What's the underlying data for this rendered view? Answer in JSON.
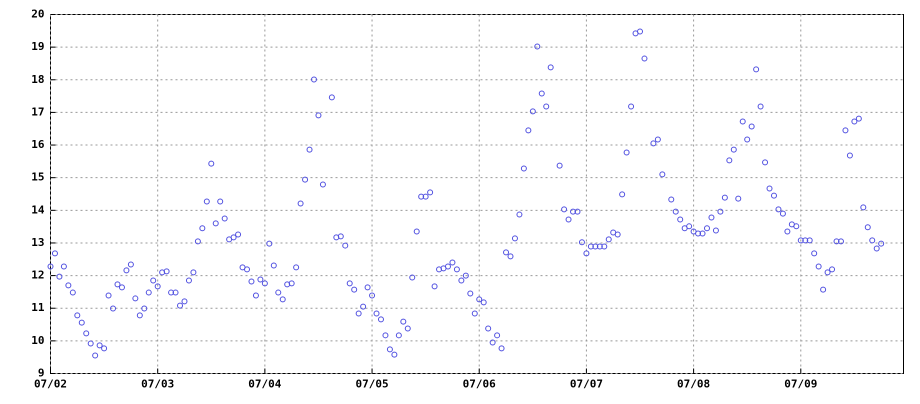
{
  "chart_data": {
    "type": "scatter",
    "color": "#5050e0",
    "grid": true,
    "xlim": [
      0,
      191
    ],
    "xticks": [
      {
        "value": 0,
        "label": "07/02"
      },
      {
        "value": 24,
        "label": "07/03"
      },
      {
        "value": 48,
        "label": "07/04"
      },
      {
        "value": 72,
        "label": "07/05"
      },
      {
        "value": 96,
        "label": "07/06"
      },
      {
        "value": 120,
        "label": "07/07"
      },
      {
        "value": 144,
        "label": "07/08"
      },
      {
        "value": 168,
        "label": "07/09"
      }
    ],
    "ylim": [
      9,
      20
    ],
    "yticks": [
      9,
      10,
      11,
      12,
      13,
      14,
      15,
      16,
      17,
      18,
      19,
      20
    ],
    "x": [
      0,
      1,
      2,
      3,
      4,
      5,
      6,
      7,
      8,
      9,
      10,
      11,
      12,
      13,
      14,
      15,
      16,
      17,
      18,
      19,
      20,
      21,
      22,
      23,
      24,
      25,
      26,
      27,
      28,
      29,
      30,
      31,
      32,
      33,
      34,
      35,
      36,
      37,
      38,
      39,
      40,
      41,
      42,
      43,
      44,
      45,
      46,
      47,
      48,
      49,
      50,
      51,
      52,
      53,
      54,
      55,
      56,
      57,
      58,
      59,
      60,
      61,
      63,
      64,
      65,
      66,
      67,
      68,
      69,
      70,
      71,
      72,
      73,
      74,
      75,
      76,
      77,
      78,
      79,
      80,
      81,
      82,
      83,
      84,
      85,
      86,
      87,
      88,
      89,
      90,
      91,
      92,
      93,
      94,
      95,
      96,
      97,
      98,
      99,
      100,
      101,
      102,
      103,
      104,
      105,
      106,
      107,
      108,
      109,
      110,
      111,
      112,
      114,
      115,
      116,
      117,
      118,
      119,
      120,
      121,
      122,
      123,
      124,
      125,
      126,
      127,
      128,
      129,
      130,
      131,
      132,
      133,
      135,
      136,
      137,
      139,
      140,
      141,
      142,
      143,
      144,
      145,
      146,
      147,
      148,
      149,
      150,
      151,
      152,
      153,
      154,
      155,
      156,
      157,
      158,
      159,
      160,
      161,
      162,
      163,
      164,
      165,
      166,
      167,
      168,
      169,
      170,
      171,
      172,
      173,
      174,
      175,
      176,
      177,
      178,
      179,
      180,
      181,
      182,
      183,
      184,
      185,
      186
    ],
    "values": [
      12.28,
      12.68,
      11.97,
      12.28,
      11.7,
      11.48,
      10.78,
      10.56,
      10.23,
      9.92,
      9.55,
      9.86,
      9.77,
      11.39,
      10.99,
      11.73,
      11.64,
      12.16,
      12.34,
      11.3,
      10.78,
      10.99,
      11.48,
      11.85,
      11.67,
      12.1,
      12.13,
      11.48,
      11.48,
      11.08,
      11.21,
      11.85,
      12.1,
      13.05,
      13.45,
      14.27,
      15.43,
      13.6,
      14.27,
      13.75,
      13.11,
      13.17,
      13.26,
      12.25,
      12.19,
      11.82,
      11.39,
      11.88,
      11.76,
      12.98,
      12.31,
      11.48,
      11.27,
      11.73,
      11.76,
      12.25,
      14.21,
      14.94,
      15.86,
      18.01,
      16.91,
      14.79,
      17.46,
      13.17,
      13.2,
      12.92,
      11.76,
      11.57,
      10.84,
      11.05,
      11.64,
      11.39,
      10.84,
      10.66,
      10.17,
      9.74,
      9.58,
      10.17,
      10.59,
      10.38,
      11.94,
      13.35,
      14.42,
      14.42,
      14.55,
      11.67,
      12.19,
      12.22,
      12.28,
      12.4,
      12.19,
      11.85,
      12.0,
      11.45,
      10.84,
      11.27,
      11.18,
      10.38,
      9.95,
      10.17,
      9.77,
      12.71,
      12.59,
      13.14,
      13.87,
      15.28,
      16.45,
      17.03,
      19.02,
      17.58,
      17.18,
      18.38,
      15.37,
      14.03,
      13.72,
      13.96,
      13.96,
      13.02,
      12.68,
      12.89,
      12.89,
      12.89,
      12.89,
      13.11,
      13.32,
      13.26,
      14.49,
      15.77,
      17.18,
      19.42,
      19.48,
      18.65,
      16.05,
      16.17,
      15.1,
      14.33,
      13.96,
      13.72,
      13.45,
      13.51,
      13.35,
      13.29,
      13.29,
      13.45,
      13.78,
      13.38,
      13.96,
      14.39,
      15.53,
      15.86,
      14.36,
      16.72,
      16.17,
      16.57,
      18.32,
      17.18,
      15.47,
      14.67,
      14.45,
      14.03,
      13.9,
      13.35,
      13.57,
      13.51,
      13.08,
      13.08,
      13.08,
      12.68,
      12.28,
      11.57,
      12.1,
      12.19,
      13.05,
      13.05,
      16.45,
      15.68,
      16.72,
      16.81,
      14.09,
      13.48,
      13.08,
      12.83,
      12.98
    ]
  }
}
